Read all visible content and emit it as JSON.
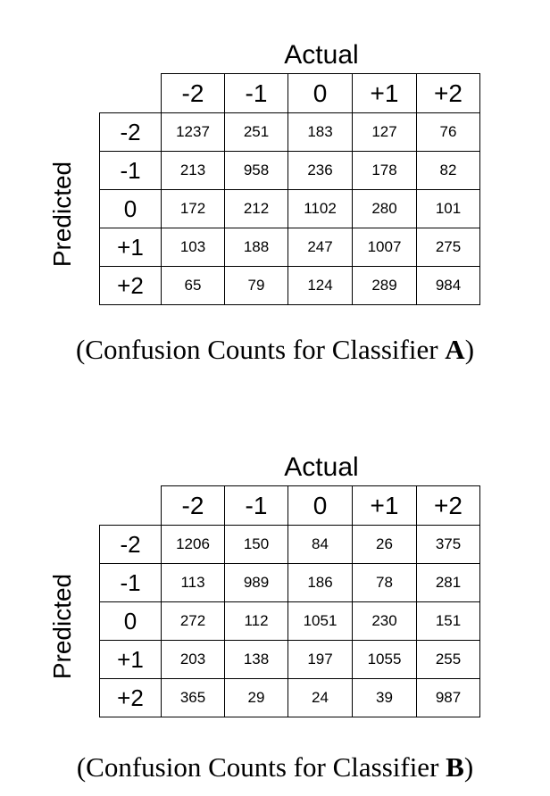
{
  "chart_data": [
    {
      "type": "table",
      "title": "Confusion Counts for Classifier A",
      "caption_prefix": "(Confusion Counts for Classifier ",
      "caption_bold": "A",
      "caption_suffix": ")",
      "column_axis_label": "Actual",
      "row_axis_label": "Predicted",
      "columns": [
        "-2",
        "-1",
        "0",
        "+1",
        "+2"
      ],
      "rows": [
        "-2",
        "-1",
        "0",
        "+1",
        "+2"
      ],
      "values": [
        [
          1237,
          251,
          183,
          127,
          76
        ],
        [
          213,
          958,
          236,
          178,
          82
        ],
        [
          172,
          212,
          1102,
          280,
          101
        ],
        [
          103,
          188,
          247,
          1007,
          275
        ],
        [
          65,
          79,
          124,
          289,
          984
        ]
      ]
    },
    {
      "type": "table",
      "title": "Confusion Counts for Classifier B",
      "caption_prefix": "(Confusion Counts for Classifier ",
      "caption_bold": "B",
      "caption_suffix": ")",
      "column_axis_label": "Actual",
      "row_axis_label": "Predicted",
      "columns": [
        "-2",
        "-1",
        "0",
        "+1",
        "+2"
      ],
      "rows": [
        "-2",
        "-1",
        "0",
        "+1",
        "+2"
      ],
      "values": [
        [
          1206,
          150,
          84,
          26,
          375
        ],
        [
          113,
          989,
          186,
          78,
          281
        ],
        [
          272,
          112,
          1051,
          230,
          151
        ],
        [
          203,
          138,
          197,
          1055,
          255
        ],
        [
          365,
          29,
          24,
          39,
          987
        ]
      ]
    }
  ]
}
